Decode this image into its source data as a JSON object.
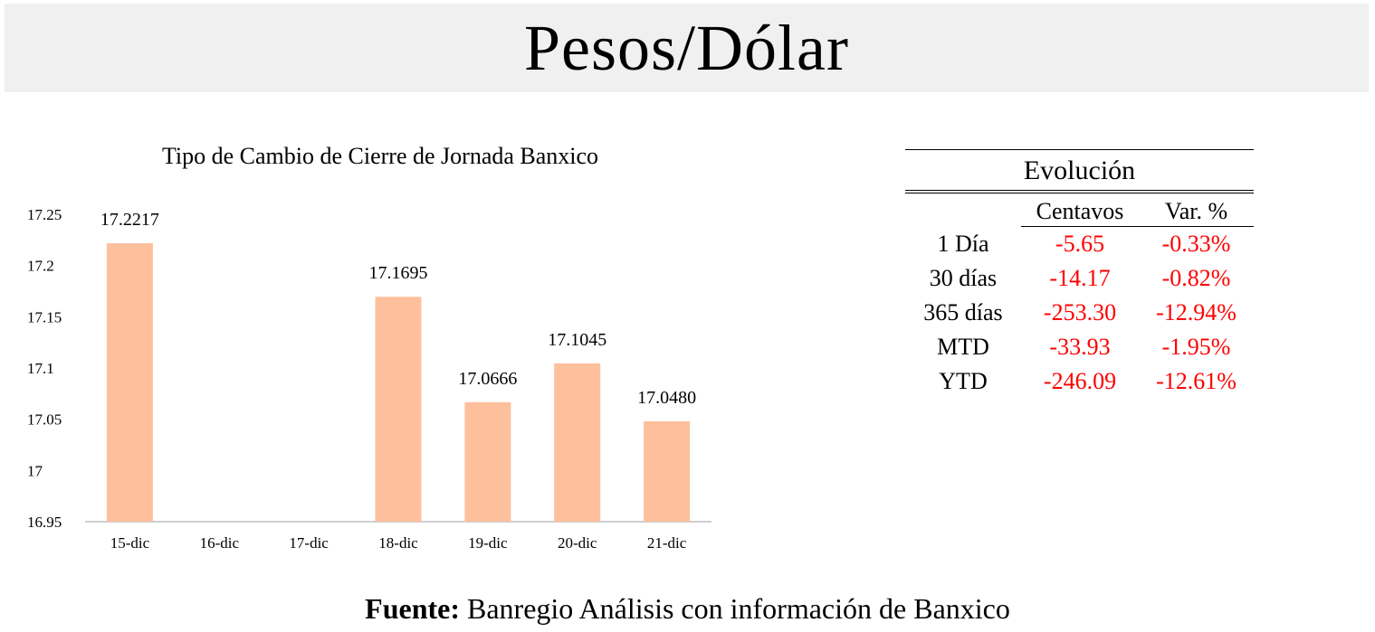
{
  "header": {
    "title": "Pesos/Dólar"
  },
  "chart_data": {
    "type": "bar",
    "title": "Tipo de Cambio de Cierre de Jornada Banxico",
    "categories": [
      "15-dic",
      "16-dic",
      "17-dic",
      "18-dic",
      "19-dic",
      "20-dic",
      "21-dic"
    ],
    "values": [
      17.2217,
      null,
      null,
      17.1695,
      17.0666,
      17.1045,
      17.048
    ],
    "data_labels": [
      "17.2217",
      "",
      "",
      "17.1695",
      "17.0666",
      "17.1045",
      "17.0480"
    ],
    "yticks": [
      "16.95",
      "17",
      "17.05",
      "17.1",
      "17.15",
      "17.2",
      "17.25"
    ],
    "ylim": [
      16.95,
      17.25
    ],
    "bar_color": "#fdbf9c",
    "grid": false,
    "legend": "none"
  },
  "table": {
    "heading": "Evolución",
    "col_headers": [
      "",
      "Centavos",
      "Var. %"
    ],
    "rows": [
      {
        "label": "1 Día",
        "centavos": "-5.65",
        "var": "-0.33%"
      },
      {
        "label": "30 días",
        "centavos": "-14.17",
        "var": "-0.82%"
      },
      {
        "label": "365 días",
        "centavos": "-253.30",
        "var": "-12.94%"
      },
      {
        "label": "MTD",
        "centavos": "-33.93",
        "var": "-1.95%"
      },
      {
        "label": "YTD",
        "centavos": "-246.09",
        "var": "-12.61%"
      }
    ],
    "negative_color": "#ff0000"
  },
  "footer": {
    "bold": "Fuente:",
    "text": "Banregio Análisis con información de Banxico"
  }
}
